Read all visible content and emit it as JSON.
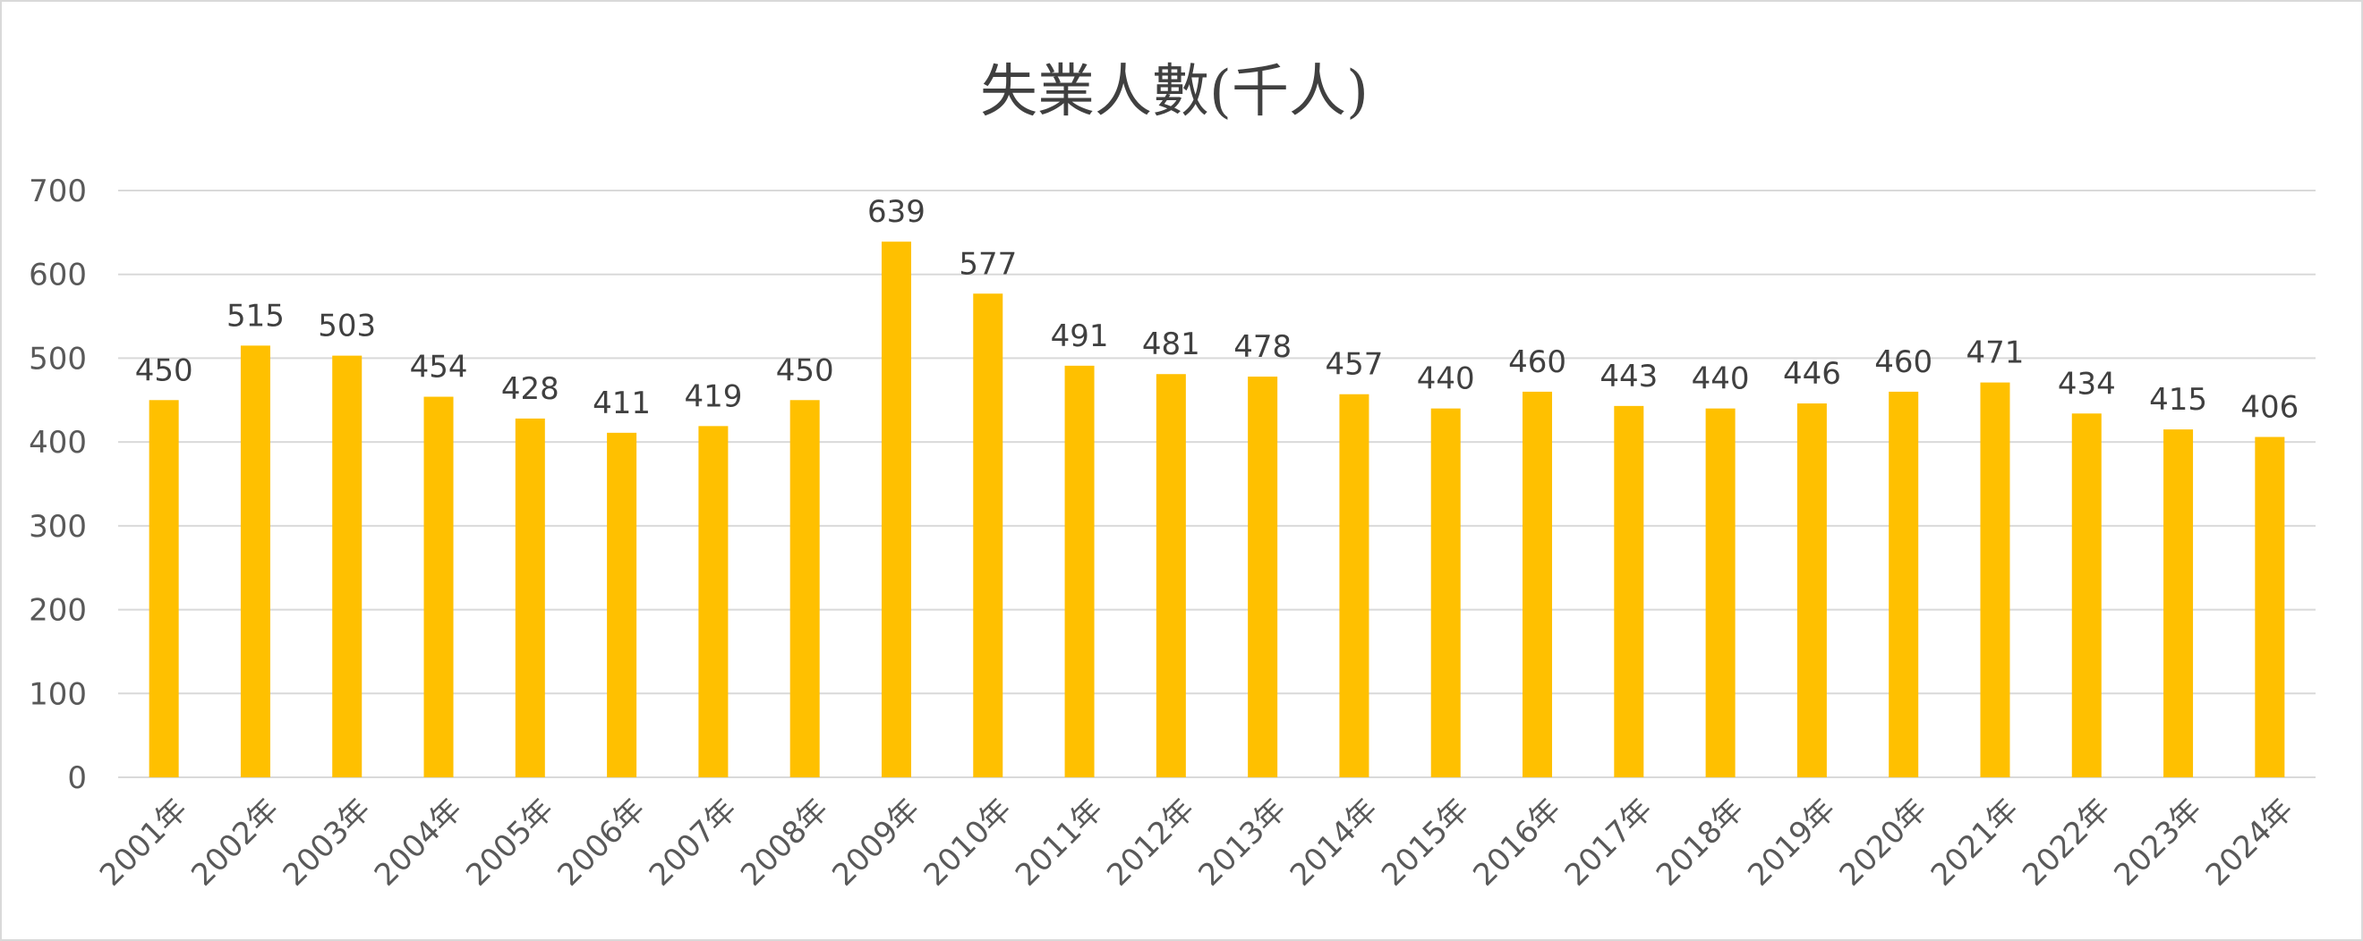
{
  "chart_data": {
    "type": "bar",
    "title": "失業人數(千人)",
    "xlabel": "",
    "ylabel": "",
    "categories": [
      "2001年",
      "2002年",
      "2003年",
      "2004年",
      "2005年",
      "2006年",
      "2007年",
      "2008年",
      "2009年",
      "2010年",
      "2011年",
      "2012年",
      "2013年",
      "2014年",
      "2015年",
      "2016年",
      "2017年",
      "2018年",
      "2019年",
      "2020年",
      "2021年",
      "2022年",
      "2023年",
      "2024年"
    ],
    "values": [
      450,
      515,
      503,
      454,
      428,
      411,
      419,
      450,
      639,
      577,
      491,
      481,
      478,
      457,
      440,
      460,
      443,
      440,
      446,
      460,
      471,
      434,
      415,
      406
    ],
    "ylim": [
      0,
      700
    ],
    "yticks": [
      0,
      100,
      200,
      300,
      400,
      500,
      600,
      700
    ],
    "grid": true,
    "legend": "none",
    "data_labels": true,
    "bar_color": "#FFC000"
  }
}
